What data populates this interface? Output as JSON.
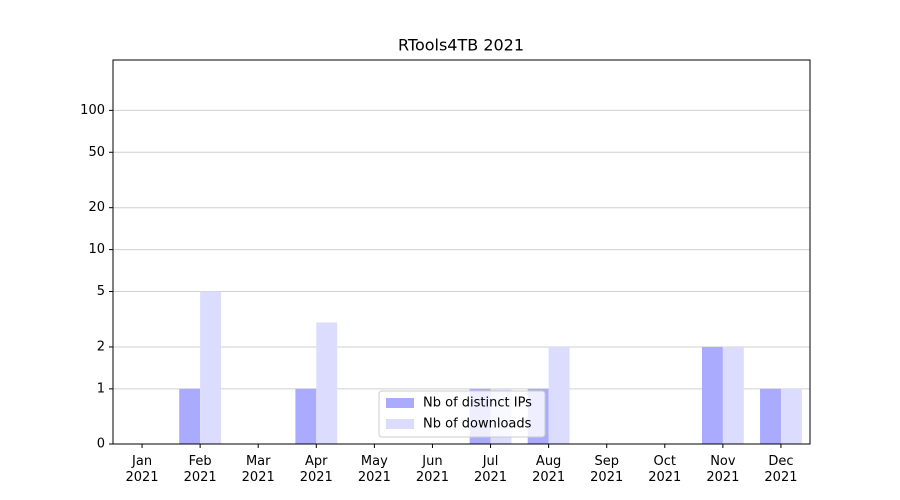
{
  "chart_data": {
    "type": "bar",
    "title": "RTools4TB 2021",
    "categories": [
      "Jan 2021",
      "Feb 2021",
      "Mar 2021",
      "Apr 2021",
      "May 2021",
      "Jun 2021",
      "Jul 2021",
      "Aug 2021",
      "Sep 2021",
      "Oct 2021",
      "Nov 2021",
      "Dec 2021"
    ],
    "series": [
      {
        "name": "Nb of distinct IPs",
        "color": "#aaaaff",
        "values": [
          0,
          1,
          0,
          1,
          0,
          0,
          1,
          1,
          0,
          0,
          2,
          1
        ]
      },
      {
        "name": "Nb of downloads",
        "color": "#dcdcff",
        "values": [
          0,
          5,
          0,
          3,
          0,
          0,
          1,
          2,
          0,
          0,
          2,
          1
        ]
      }
    ],
    "yscale": "symlog",
    "ylim": [
      0,
      230
    ],
    "yticks": [
      0,
      1,
      2,
      5,
      10,
      20,
      50,
      100
    ],
    "grid": true,
    "legend": "lower center"
  }
}
